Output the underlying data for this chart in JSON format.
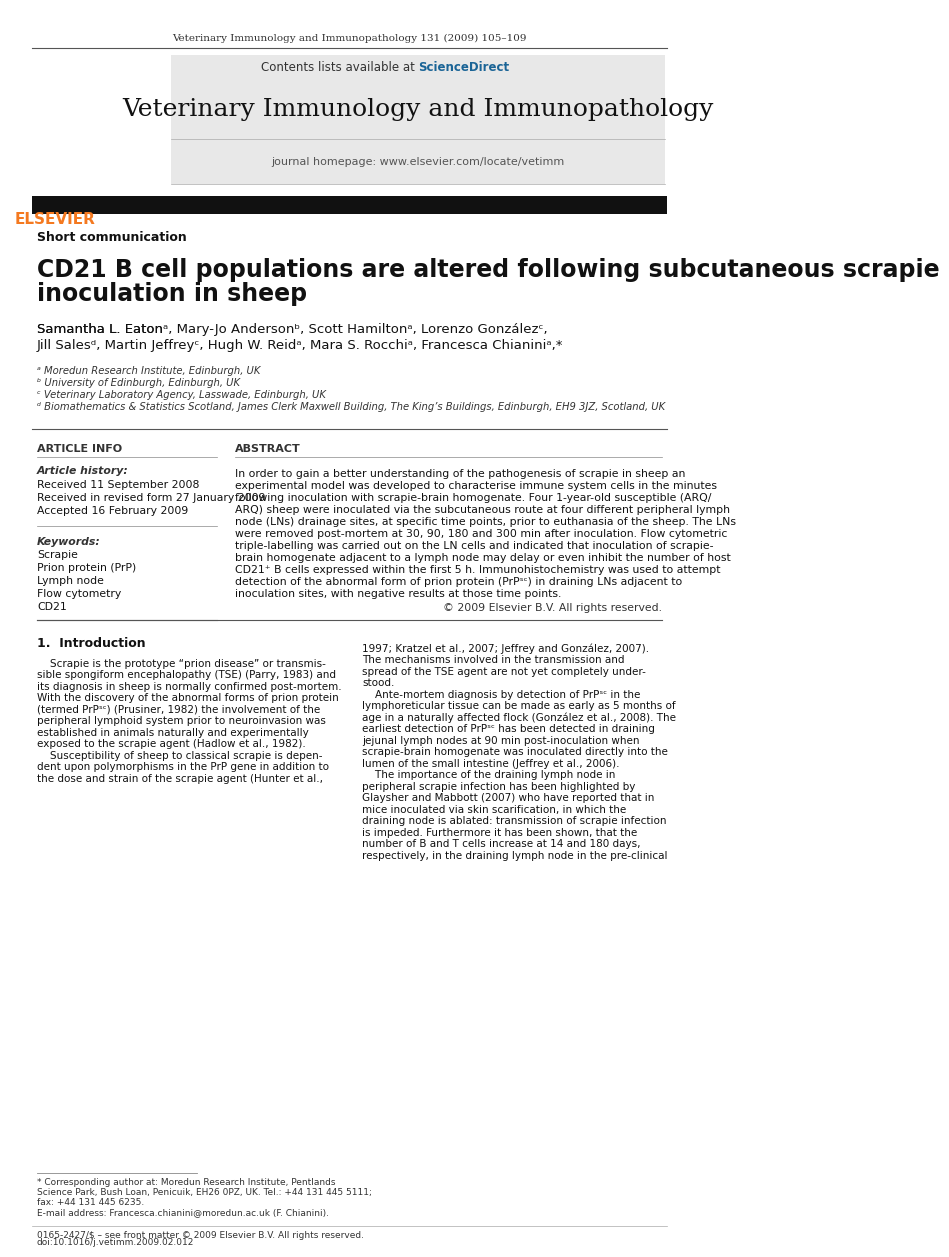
{
  "page_bg": "#ffffff",
  "header_journal_line": "Veterinary Immunology and Immunopathology 131 (2009) 105–109",
  "header_bar_color": "#000000",
  "journal_title": "Veterinary Immunology and Immunopathology",
  "journal_homepage": "journal homepage: www.elsevier.com/locate/vetimm",
  "contents_line": "Contents lists available at ScienceDirect",
  "science_direct_color": "#1a6496",
  "header_bg": "#e8e8e8",
  "section_label": "Short communication",
  "article_title": "CD21 B cell populations are altered following subcutaneous scrapie\ninoculation in sheep",
  "authors": "Samantha L. Eatonᵃ, Mary-Jo Andersonᵇ, Scott Hamiltonᵃ, Lorenzo Gonzálezᶜ,\nJill Salesᵈ, Martin Jeffreyᶜ, Hugh W. Reidᵃ, Mara S. Rocchiᵃ, Francesca Chianiniᵃ,*",
  "affiliations": [
    "ᵃ Moredun Research Institute, Edinburgh, UK",
    "ᵇ University of Edinburgh, Edinburgh, UK",
    "ᶜ Veterinary Laboratory Agency, Lasswade, Edinburgh, UK",
    "ᵈ Biomathematics & Statistics Scotland, James Clerk Maxwell Building, The King’s Buildings, Edinburgh, EH9 3JZ, Scotland, UK"
  ],
  "article_info_header": "ARTICLE INFO",
  "article_history_label": "Article history:",
  "article_history": [
    "Received 11 September 2008",
    "Received in revised form 27 January 2009",
    "Accepted 16 February 2009"
  ],
  "keywords_label": "Keywords:",
  "keywords": [
    "Scrapie",
    "Prion protein (PrP)",
    "Lymph node",
    "Flow cytometry",
    "CD21"
  ],
  "abstract_header": "ABSTRACT",
  "abstract_text": "In order to gain a better understanding of the pathogenesis of scrapie in sheep an\nexperimental model was developed to characterise immune system cells in the minutes\nfollowing inoculation with scrapie-brain homogenate. Four 1-year-old susceptible (ARQ/\nARQ) sheep were inoculated via the subcutaneous route at four different peripheral lymph\nnode (LNs) drainage sites, at specific time points, prior to euthanasia of the sheep. The LNs\nwere removed post-mortem at 30, 90, 180 and 300 min after inoculation. Flow cytometric\ntriple-labelling was carried out on the LN cells and indicated that inoculation of scrapie-\nbrain homogenate adjacent to a lymph node may delay or even inhibit the number of host\nCD21⁺ B cells expressed within the first 5 h. Immunohistochemistry was used to attempt\ndetection of the abnormal form of prion protein (PrPˢᶜ) in draining LNs adjacent to\ninoculation sites, with negative results at those time points.",
  "abstract_copyright": "© 2009 Elsevier B.V. All rights reserved.",
  "intro_header": "1.  Introduction",
  "intro_col1": "    Scrapie is the prototype “prion disease” or transmis-\nsible spongiform encephalopathy (TSE) (Parry, 1983) and\nits diagnosis in sheep is normally confirmed post-mortem.\nWith the discovery of the abnormal forms of prion protein\n(termed PrPˢᶜ) (Prusiner, 1982) the involvement of the\nperipheral lymphoid system prior to neuroinvasion was\nestablished in animals naturally and experimentally\nexposed to the scrapie agent (Hadlow et al., 1982).\n    Susceptibility of sheep to classical scrapie is depen-\ndent upon polymorphisms in the PrP gene in addition to\nthe dose and strain of the scrapie agent (Hunter et al.,",
  "intro_col2": "1997; Kratzel et al., 2007; Jeffrey and González, 2007).\nThe mechanisms involved in the transmission and\nspread of the TSE agent are not yet completely under-\nstood.\n    Ante-mortem diagnosis by detection of PrPˢᶜ in the\nlymphoreticular tissue can be made as early as 5 months of\nage in a naturally affected flock (González et al., 2008). The\nearliest detection of PrPˢᶜ has been detected in draining\njejunal lymph nodes at 90 min post-inoculation when\nscrapie-brain homogenate was inoculated directly into the\nlumen of the small intestine (Jeffrey et al., 2006).\n    The importance of the draining lymph node in\nperipheral scrapie infection has been highlighted by\nGlaysher and Mabbott (2007) who have reported that in\nmice inoculated via skin scarification, in which the\ndraining node is ablated: transmission of scrapie infection\nis impeded. Furthermore it has been shown, that the\nnumber of B and T cells increase at 14 and 180 days,\nrespectively, in the draining lymph node in the pre-clinical",
  "footnote_star": "* Corresponding author at: Moredun Research Institute, Pentlands\nScience Park, Bush Loan, Penicuik, EH26 0PZ, UK. Tel.: +44 131 445 5111;\nfax: +44 131 445 6235.",
  "footnote_email": "E-mail address: Francesca.chianini@moredun.ac.uk (F. Chianini).",
  "bottom_line1": "0165-2427/$ – see front matter © 2009 Elsevier B.V. All rights reserved.",
  "bottom_line2": "doi:10.1016/j.vetimm.2009.02.012",
  "elsevier_orange": "#f47920",
  "link_blue": "#1a6496"
}
